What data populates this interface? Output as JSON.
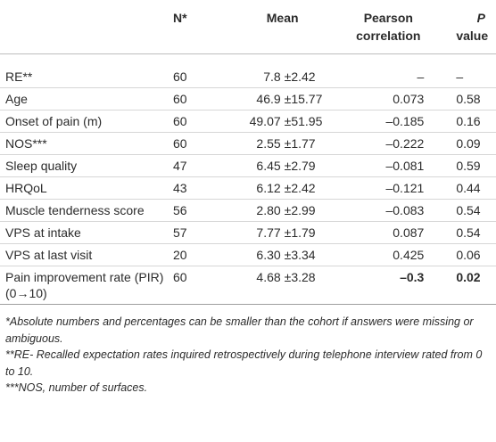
{
  "table": {
    "header": [
      "",
      "N*",
      "Mean",
      "Pearson correlation",
      {
        "italic": "P",
        "text": "value"
      }
    ],
    "rows": [
      [
        "RE**",
        "60",
        "7.8",
        "±2.42",
        "–",
        "–"
      ],
      [
        "Age",
        "60",
        "46.9",
        "±15.77",
        "0.073",
        "0.58"
      ],
      [
        "Onset of pain (m)",
        "60",
        "49.07",
        "±51.95",
        "–0.185",
        "0.16"
      ],
      [
        "NOS***",
        "60",
        "2.55",
        "±1.77",
        "–0.222",
        "0.09"
      ],
      [
        "Sleep quality",
        "47",
        "6.45",
        "±2.79",
        "–0.081",
        "0.59"
      ],
      [
        "HRQoL",
        "43",
        "6.12",
        "±2.42",
        "–0.121",
        "0.44"
      ],
      [
        "Muscle tenderness score",
        "56",
        "2.80",
        "±2.99",
        "–0.083",
        "0.54"
      ],
      [
        "VPS at intake",
        "57",
        "7.77",
        "±1.79",
        "0.087",
        "0.54"
      ],
      [
        "VPS at last visit",
        "20",
        "6.30",
        "±3.34",
        "0.425",
        "0.06"
      ],
      [
        "Pain improvement rate (PIR) (0→10)",
        "60",
        "4.68",
        "±3.28",
        "–0.3",
        "0.02"
      ]
    ]
  },
  "footnotes": [
    "*Absolute numbers and percentages can be smaller than the cohort if answers were missing or ambiguous.",
    "**RE- Recalled expectation rates inquired retrospectively during telephone interview rated from 0 to 10.",
    "***NOS, number of surfaces."
  ]
}
